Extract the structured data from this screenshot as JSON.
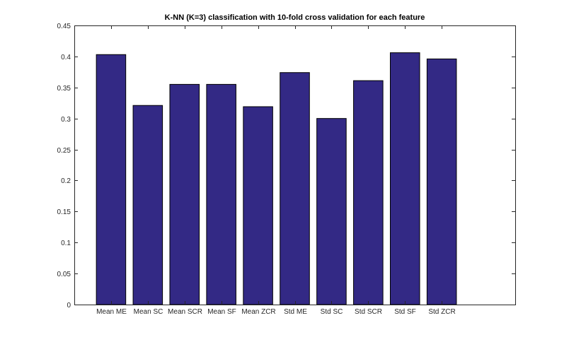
{
  "chart_data": {
    "type": "bar",
    "title": "K-NN (K=3) classification with 10-fold cross validation for each feature",
    "xlabel": "",
    "ylabel": "",
    "categories": [
      "Mean ME",
      "Mean SC",
      "Mean SCR",
      "Mean SF",
      "Mean ZCR",
      "Std ME",
      "Std SC",
      "Std SCR",
      "Std SF",
      "Std ZCR"
    ],
    "values": [
      0.403,
      0.321,
      0.355,
      0.355,
      0.319,
      0.374,
      0.3,
      0.361,
      0.406,
      0.396
    ],
    "ylim": [
      0,
      0.45
    ],
    "xlim": [
      0,
      12
    ],
    "yticks": [
      0,
      0.05,
      0.1,
      0.15,
      0.2,
      0.25,
      0.3,
      0.35,
      0.4,
      0.45
    ],
    "ytick_labels": [
      "0",
      "0.05",
      "0.1",
      "0.15",
      "0.2",
      "0.25",
      "0.3",
      "0.35",
      "0.4",
      "0.45"
    ],
    "grid": false,
    "bar_color": "#332985",
    "edge_color": "#000000"
  }
}
